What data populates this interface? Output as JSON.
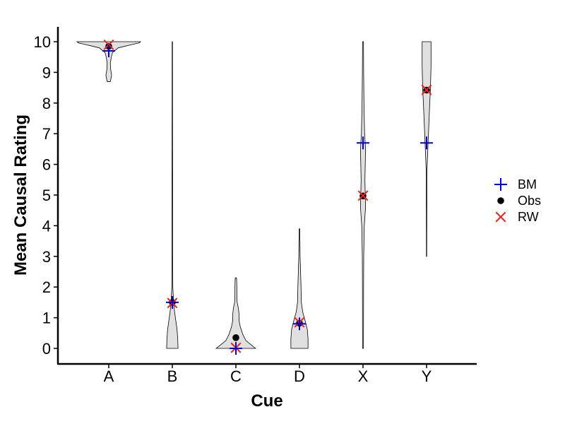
{
  "chart_data": {
    "type": "violin",
    "xlabel": "Cue",
    "ylabel": "Mean Causal Rating",
    "categories": [
      "A",
      "B",
      "C",
      "D",
      "X",
      "Y"
    ],
    "yticks": [
      0,
      1,
      2,
      3,
      4,
      5,
      6,
      7,
      8,
      9,
      10
    ],
    "ylim": [
      -0.5,
      10.5
    ],
    "violins": [
      {
        "category": "A",
        "min": 8.7,
        "max": 10.0,
        "profile": [
          [
            8.7,
            0.05
          ],
          [
            8.9,
            0.09
          ],
          [
            9.1,
            0.06
          ],
          [
            9.3,
            0.05
          ],
          [
            9.5,
            0.08
          ],
          [
            9.65,
            0.12
          ],
          [
            9.8,
            0.3
          ],
          [
            9.9,
            0.7
          ],
          [
            9.96,
            0.95
          ],
          [
            10.0,
            1.0
          ]
        ]
      },
      {
        "category": "B",
        "min": 0.0,
        "max": 10.0,
        "profile": [
          [
            0.0,
            0.18
          ],
          [
            0.3,
            0.17
          ],
          [
            0.6,
            0.15
          ],
          [
            0.9,
            0.11
          ],
          [
            1.2,
            0.07
          ],
          [
            1.5,
            0.04
          ],
          [
            2.0,
            0.015
          ],
          [
            3.5,
            0.01
          ],
          [
            5.0,
            0.012
          ],
          [
            5.6,
            0.013
          ],
          [
            6.5,
            0.008
          ],
          [
            10.0,
            0.006
          ]
        ]
      },
      {
        "category": "C",
        "min": 0.0,
        "max": 2.3,
        "profile": [
          [
            0.0,
            0.62
          ],
          [
            0.1,
            0.5
          ],
          [
            0.25,
            0.32
          ],
          [
            0.45,
            0.22
          ],
          [
            0.7,
            0.14
          ],
          [
            0.9,
            0.1
          ],
          [
            1.1,
            0.1
          ],
          [
            1.3,
            0.08
          ],
          [
            1.5,
            0.04
          ],
          [
            1.8,
            0.03
          ],
          [
            2.0,
            0.03
          ],
          [
            2.2,
            0.025
          ],
          [
            2.3,
            0.02
          ]
        ]
      },
      {
        "category": "D",
        "min": 0.0,
        "max": 3.9,
        "profile": [
          [
            0.0,
            0.27
          ],
          [
            0.3,
            0.27
          ],
          [
            0.6,
            0.25
          ],
          [
            0.9,
            0.18
          ],
          [
            1.2,
            0.1
          ],
          [
            1.5,
            0.06
          ],
          [
            2.0,
            0.05
          ],
          [
            2.5,
            0.035
          ],
          [
            3.0,
            0.02
          ],
          [
            3.5,
            0.015
          ],
          [
            3.9,
            0.01
          ]
        ]
      },
      {
        "category": "X",
        "min": 0.0,
        "max": 10.0,
        "profile": [
          [
            0.0,
            0.015
          ],
          [
            2.0,
            0.018
          ],
          [
            3.0,
            0.022
          ],
          [
            4.0,
            0.04
          ],
          [
            4.6,
            0.08
          ],
          [
            5.0,
            0.07
          ],
          [
            5.5,
            0.06
          ],
          [
            6.0,
            0.07
          ],
          [
            6.5,
            0.08
          ],
          [
            7.0,
            0.05
          ],
          [
            8.0,
            0.03
          ],
          [
            9.0,
            0.02
          ],
          [
            10.0,
            0.015
          ]
        ]
      },
      {
        "category": "Y",
        "min": 3.0,
        "max": 10.0,
        "profile": [
          [
            3.0,
            0.005
          ],
          [
            4.5,
            0.008
          ],
          [
            5.8,
            0.012
          ],
          [
            6.4,
            0.035
          ],
          [
            7.0,
            0.06
          ],
          [
            7.5,
            0.08
          ],
          [
            8.0,
            0.1
          ],
          [
            8.4,
            0.12
          ],
          [
            8.8,
            0.13
          ],
          [
            9.2,
            0.14
          ],
          [
            9.6,
            0.14
          ],
          [
            10.0,
            0.14
          ]
        ]
      }
    ],
    "series": [
      {
        "name": "BM",
        "marker": "plus",
        "color": "#0000cc",
        "values": [
          9.7,
          1.5,
          0.0,
          0.8,
          6.7,
          6.7
        ]
      },
      {
        "name": "Obs",
        "marker": "dot",
        "color": "#000000",
        "values": [
          9.85,
          1.5,
          0.35,
          0.82,
          4.97,
          8.42
        ]
      },
      {
        "name": "RW",
        "marker": "x",
        "color": "#e8251f",
        "values": [
          9.9,
          1.48,
          0.02,
          0.85,
          4.98,
          8.43
        ]
      }
    ],
    "legend": {
      "position": "right"
    },
    "violin_fill": "#e0e0e0",
    "violin_stroke": "#000000",
    "grid": false
  }
}
